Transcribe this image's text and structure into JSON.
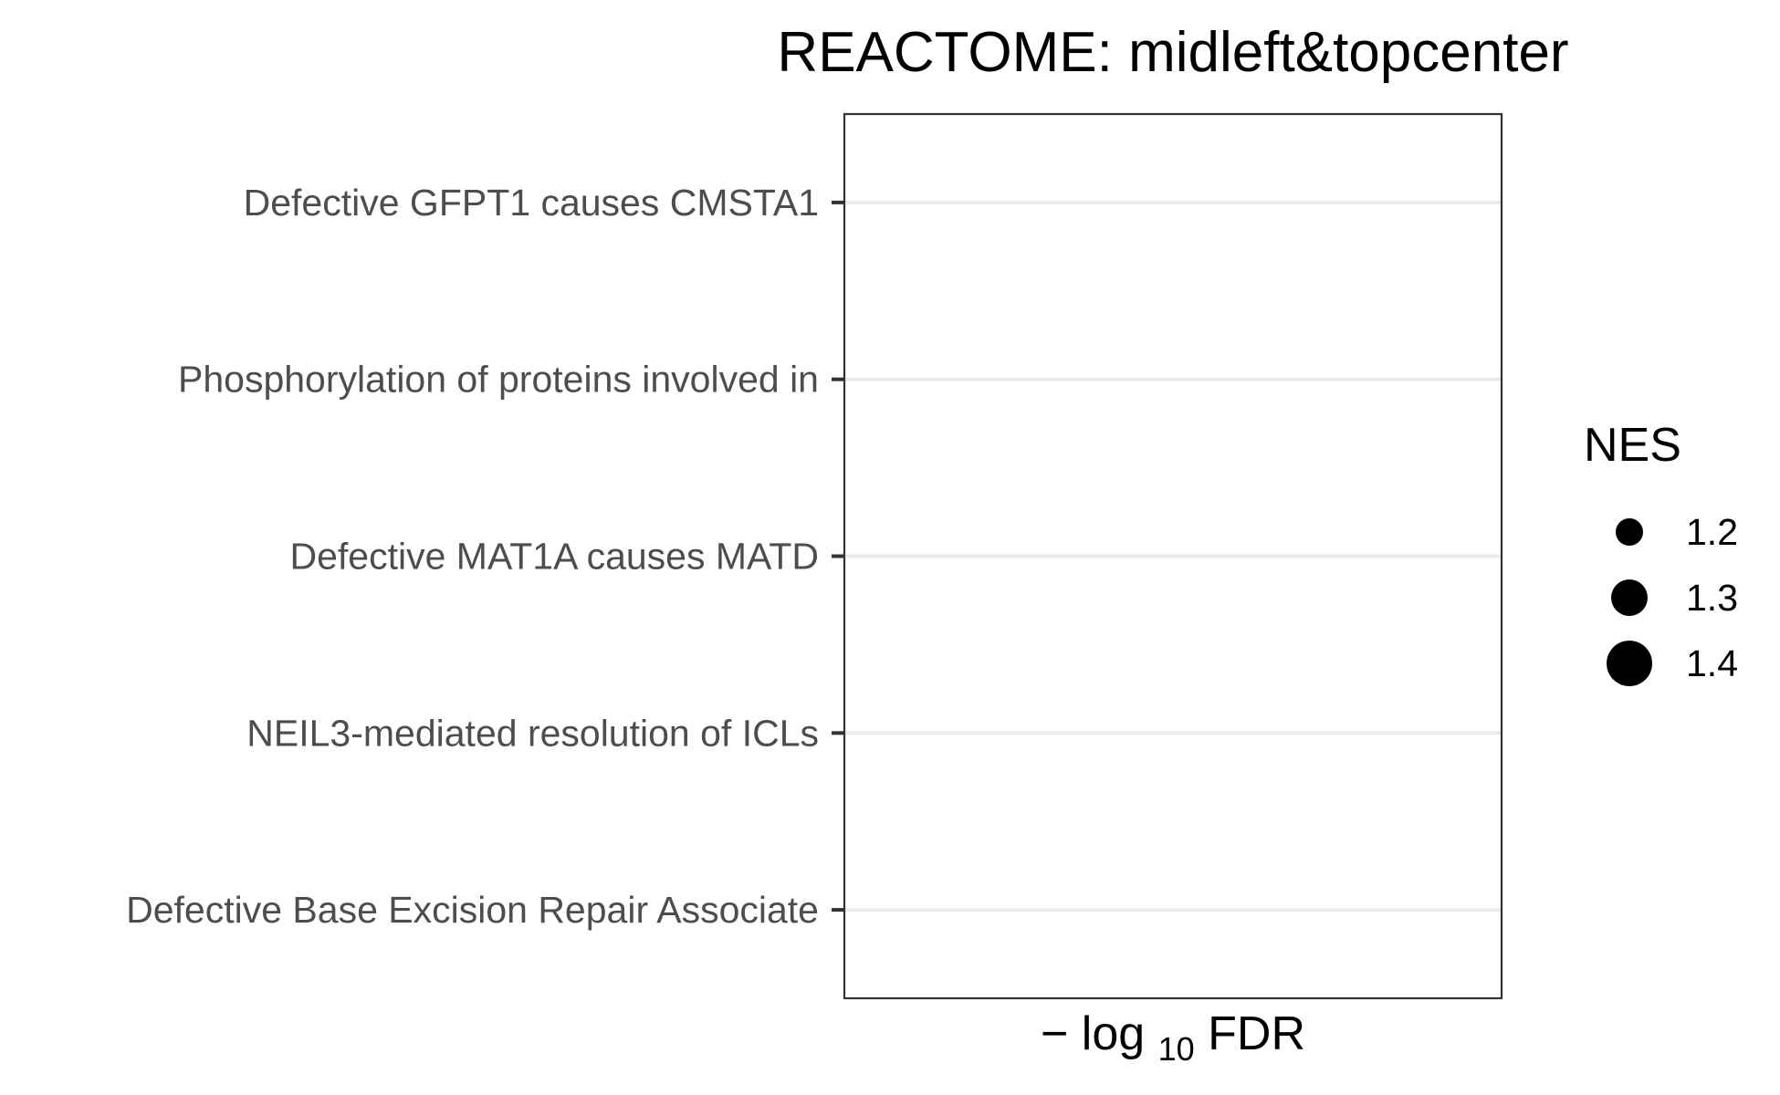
{
  "chart_data": {
    "type": "scatter",
    "title": "REACTOME: midleft&topcenter",
    "xlabel": {
      "prefix": "−",
      "main": "log",
      "subscript": "10",
      "suffix": "FDR"
    },
    "ylabel": "",
    "categories": [
      "Defective GFPT1 causes CMSTA1",
      "Phosphorylation of proteins involved in",
      "Defective MAT1A causes MATD",
      "NEIL3-mediated resolution of ICLs",
      "Defective Base Excision Repair Associate"
    ],
    "series": [],
    "x_ticks": [],
    "grid": "horizontal-major",
    "legend": {
      "title": "NES",
      "position": "right",
      "entries": [
        {
          "label": "1.2",
          "value": 1.2
        },
        {
          "label": "1.3",
          "value": 1.3
        },
        {
          "label": "1.4",
          "value": 1.4
        }
      ]
    },
    "colors": {
      "grid": "#ebebeb",
      "panel_border": "#333333",
      "tick_text": "#4d4d4d",
      "point": "#000000"
    }
  }
}
